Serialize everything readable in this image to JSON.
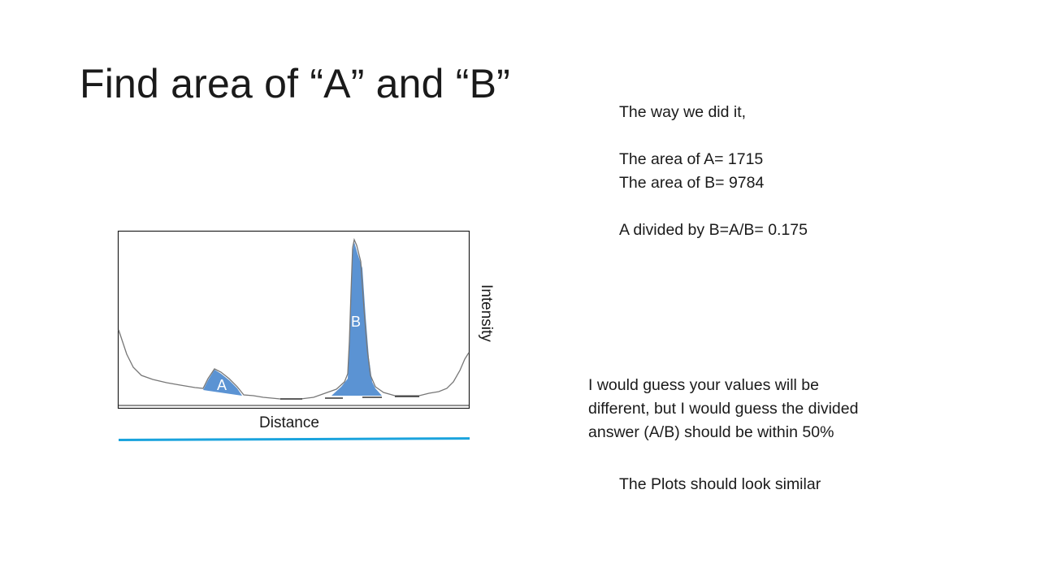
{
  "slide": {
    "title": "Find area of “A” and “B”",
    "notes": {
      "line1": "The way we did it,",
      "line2": "The area of A= 1715",
      "line3": "The area of B=  9784",
      "line4": "A divided by B=A/B= 0.175"
    },
    "guess": {
      "line1": "I would guess your values will be",
      "line2": "different, but I would guess the divided",
      "line3": "answer (A/B) should be within 50%"
    },
    "similar": "The Plots should look similar"
  },
  "plot": {
    "peak_a_label": "A",
    "peak_b_label": "B",
    "xlabel": "Distance",
    "ylabel": "Intensity",
    "fill_color": "#5b93d3",
    "trace_color": "#777777",
    "axis_color": "#222222",
    "underline_color": "#1aa3dd"
  }
}
